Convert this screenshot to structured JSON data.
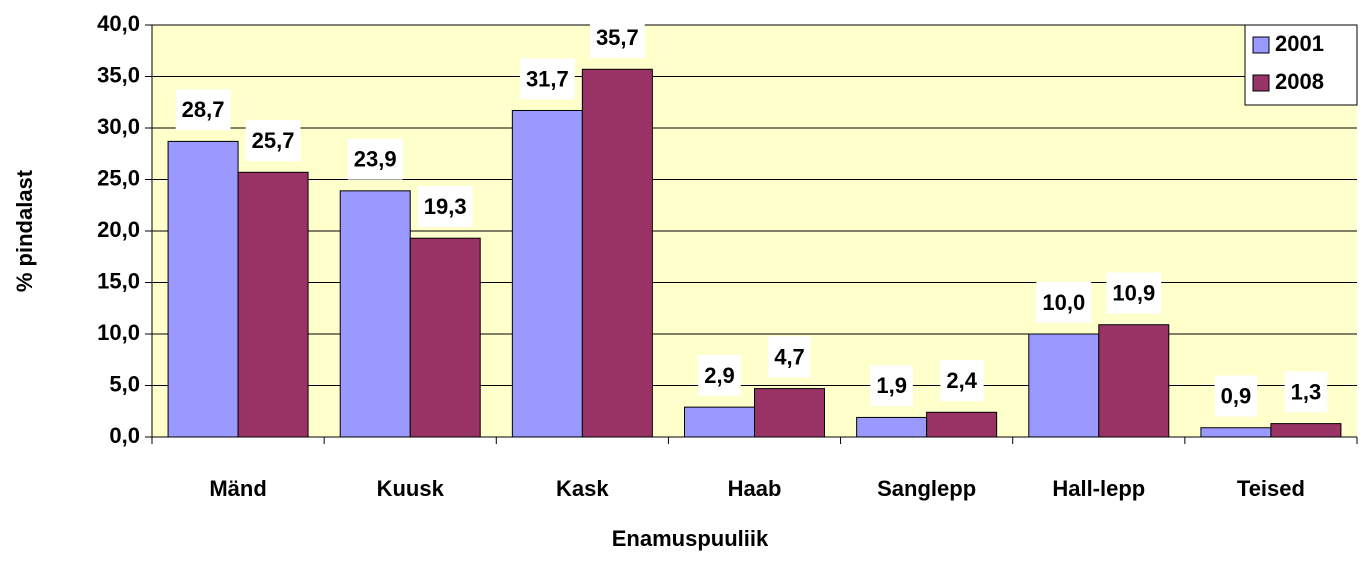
{
  "chart_data": {
    "type": "bar",
    "x_label": "Enamuspuuliik",
    "y_label": "% pindalast",
    "categories": [
      "Mänd",
      "Kuusk",
      "Kask",
      "Haab",
      "Sanglepp",
      "Hall-lepp",
      "Teised"
    ],
    "series": [
      {
        "name": "2001",
        "color": "#9999ff",
        "values": [
          28.7,
          23.9,
          31.7,
          2.9,
          1.9,
          10.0,
          0.9
        ],
        "value_labels": [
          "28,7",
          "23,9",
          "31,7",
          "2,9",
          "1,9",
          "10,0",
          "0,9"
        ]
      },
      {
        "name": "2008",
        "color": "#993366",
        "values": [
          25.7,
          19.3,
          35.7,
          4.7,
          2.4,
          10.9,
          1.3
        ],
        "value_labels": [
          "25,7",
          "19,3",
          "35,7",
          "4,7",
          "2,4",
          "10,9",
          "1,3"
        ]
      }
    ],
    "ylim": [
      0,
      40
    ],
    "yticks": [
      {
        "value": 0,
        "label": "0,0"
      },
      {
        "value": 5,
        "label": "5,0"
      },
      {
        "value": 10,
        "label": "10,0"
      },
      {
        "value": 15,
        "label": "15,0"
      },
      {
        "value": 20,
        "label": "20,0"
      },
      {
        "value": 25,
        "label": "25,0"
      },
      {
        "value": 30,
        "label": "30,0"
      },
      {
        "value": 35,
        "label": "35,0"
      },
      {
        "value": 40,
        "label": "40,0"
      }
    ],
    "grid": true,
    "legend": "top-right"
  }
}
